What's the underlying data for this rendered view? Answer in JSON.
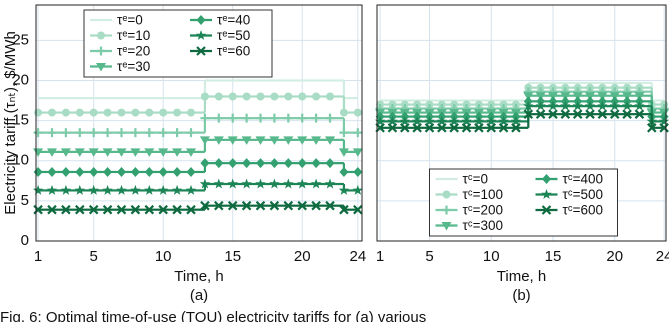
{
  "chart_data": [
    {
      "type": "step",
      "ylabel": "Electricity tariff (τₙₜ), $/MWh",
      "xlabel": "Time, h",
      "panel_label": "(a)",
      "x": [
        1,
        2,
        3,
        4,
        5,
        6,
        7,
        8,
        9,
        10,
        11,
        12,
        13,
        14,
        15,
        16,
        17,
        18,
        19,
        20,
        21,
        22,
        23,
        24
      ],
      "xlim": [
        0.85,
        24.3
      ],
      "ylim": [
        0,
        29.4
      ],
      "xticks": [
        1,
        5,
        10,
        15,
        20,
        24
      ],
      "yticks": [
        0,
        5,
        10,
        15,
        20,
        25
      ],
      "grid": true,
      "legend": "upper left",
      "series": [
        {
          "name": "τᵉ=0",
          "color": "#d2eee2",
          "marker": "none",
          "values": [
            17.8,
            17.8,
            17.8,
            17.8,
            17.8,
            17.8,
            17.8,
            17.8,
            17.8,
            17.8,
            17.8,
            17.8,
            20,
            20,
            20,
            20,
            20,
            20,
            20,
            20,
            20,
            20,
            17.8,
            17.8
          ]
        },
        {
          "name": "τᵉ=10",
          "color": "#a9dcc5",
          "marker": "circle",
          "values": [
            16,
            16,
            16,
            16,
            16,
            16,
            16,
            16,
            16,
            16,
            16,
            16,
            18,
            18,
            18,
            18,
            18,
            18,
            18,
            18,
            18,
            18,
            16,
            16
          ]
        },
        {
          "name": "τᵉ=20",
          "color": "#7ecba9",
          "marker": "plus",
          "values": [
            13.5,
            13.5,
            13.5,
            13.5,
            13.5,
            13.5,
            13.5,
            13.5,
            13.5,
            13.5,
            13.5,
            13.5,
            15.3,
            15.3,
            15.3,
            15.3,
            15.3,
            15.3,
            15.3,
            15.3,
            15.3,
            15.3,
            13.5,
            13.5
          ]
        },
        {
          "name": "τᵉ=30",
          "color": "#57b88c",
          "marker": "triangle",
          "values": [
            11.1,
            11.1,
            11.1,
            11.1,
            11.1,
            11.1,
            11.1,
            11.1,
            11.1,
            11.1,
            11.1,
            11.1,
            12.6,
            12.6,
            12.6,
            12.6,
            12.6,
            12.6,
            12.6,
            12.6,
            12.6,
            12.6,
            11.1,
            11.1
          ]
        },
        {
          "name": "τᵉ=40",
          "color": "#33a070",
          "marker": "diamond",
          "values": [
            8.6,
            8.6,
            8.6,
            8.6,
            8.6,
            8.6,
            8.6,
            8.6,
            8.6,
            8.6,
            8.6,
            8.6,
            9.7,
            9.7,
            9.7,
            9.7,
            9.7,
            9.7,
            9.7,
            9.7,
            9.7,
            9.7,
            8.6,
            8.6
          ]
        },
        {
          "name": "τᵉ=50",
          "color": "#1c8556",
          "marker": "star",
          "values": [
            6.3,
            6.3,
            6.3,
            6.3,
            6.3,
            6.3,
            6.3,
            6.3,
            6.3,
            6.3,
            6.3,
            6.3,
            7.1,
            7.1,
            7.1,
            7.1,
            7.1,
            7.1,
            7.1,
            7.1,
            7.1,
            7.1,
            6.3,
            6.3
          ]
        },
        {
          "name": "τᵉ=60",
          "color": "#0f6a40",
          "marker": "x",
          "values": [
            3.9,
            3.9,
            3.9,
            3.9,
            3.9,
            3.9,
            3.9,
            3.9,
            3.9,
            3.9,
            3.9,
            3.9,
            4.4,
            4.4,
            4.4,
            4.4,
            4.4,
            4.4,
            4.4,
            4.4,
            4.4,
            4.4,
            3.9,
            3.9
          ]
        }
      ]
    },
    {
      "type": "step",
      "xlabel": "Time, h",
      "panel_label": "(b)",
      "x": [
        1,
        2,
        3,
        4,
        5,
        6,
        7,
        8,
        9,
        10,
        11,
        12,
        13,
        14,
        15,
        16,
        17,
        18,
        19,
        20,
        21,
        22,
        23,
        24
      ],
      "xlim": [
        0.75,
        24.15
      ],
      "ylim": [
        0,
        29.4
      ],
      "xticks": [
        1,
        5,
        10,
        15,
        20,
        24
      ],
      "yticks": [
        0,
        5,
        10,
        15,
        20,
        25
      ],
      "grid": true,
      "legend": "lower center",
      "series": [
        {
          "name": "τᶜ=0",
          "color": "#d2eee2",
          "marker": "none",
          "values": [
            17.5,
            17.5,
            17.5,
            17.5,
            17.5,
            17.5,
            17.5,
            17.5,
            17.5,
            17.5,
            17.5,
            17.5,
            19.7,
            19.7,
            19.7,
            19.7,
            19.7,
            19.7,
            19.7,
            19.7,
            19.7,
            19.7,
            17.5,
            17.5
          ]
        },
        {
          "name": "τᶜ=100",
          "color": "#a9dcc5",
          "marker": "circle",
          "values": [
            17,
            17,
            17,
            17,
            17,
            17,
            17,
            17,
            17,
            17,
            17,
            17,
            19.1,
            19.1,
            19.1,
            19.1,
            19.1,
            19.1,
            19.1,
            19.1,
            19.1,
            19.1,
            17,
            17
          ]
        },
        {
          "name": "τᶜ=200",
          "color": "#7ecba9",
          "marker": "plus",
          "values": [
            16.5,
            16.5,
            16.5,
            16.5,
            16.5,
            16.5,
            16.5,
            16.5,
            16.5,
            16.5,
            16.5,
            16.5,
            18.6,
            18.6,
            18.6,
            18.6,
            18.6,
            18.6,
            18.6,
            18.6,
            18.6,
            18.6,
            16.5,
            16.5
          ]
        },
        {
          "name": "τᶜ=300",
          "color": "#57b88c",
          "marker": "triangle",
          "values": [
            16,
            16,
            16,
            16,
            16,
            16,
            16,
            16,
            16,
            16,
            16,
            16,
            18.1,
            18.1,
            18.1,
            18.1,
            18.1,
            18.1,
            18.1,
            18.1,
            18.1,
            18.1,
            16,
            16
          ]
        },
        {
          "name": "τᶜ=400",
          "color": "#33a070",
          "marker": "diamond",
          "values": [
            15.5,
            15.5,
            15.5,
            15.5,
            15.5,
            15.5,
            15.5,
            15.5,
            15.5,
            15.5,
            15.5,
            15.5,
            17.4,
            17.4,
            17.4,
            17.4,
            17.4,
            17.4,
            17.4,
            17.4,
            17.4,
            17.4,
            15.5,
            15.5
          ]
        },
        {
          "name": "τᶜ=500",
          "color": "#1c8556",
          "marker": "star",
          "values": [
            14.9,
            14.9,
            14.9,
            14.9,
            14.9,
            14.9,
            14.9,
            14.9,
            14.9,
            14.9,
            14.9,
            14.9,
            16.8,
            16.8,
            16.8,
            16.8,
            16.8,
            16.8,
            16.8,
            16.8,
            16.8,
            16.8,
            14.9,
            14.9
          ]
        },
        {
          "name": "τᶜ=600",
          "color": "#0f6a40",
          "marker": "x",
          "values": [
            14.1,
            14.1,
            14.1,
            14.1,
            14.1,
            14.1,
            14.1,
            14.1,
            14.1,
            14.1,
            14.1,
            14.1,
            15.8,
            15.8,
            15.8,
            15.8,
            15.8,
            15.8,
            15.8,
            15.8,
            15.8,
            15.8,
            14.1,
            14.1
          ]
        }
      ]
    }
  ],
  "caption": "Fig. 6: Optimal time-of-use (TOU) electricity tariffs for (a) various"
}
